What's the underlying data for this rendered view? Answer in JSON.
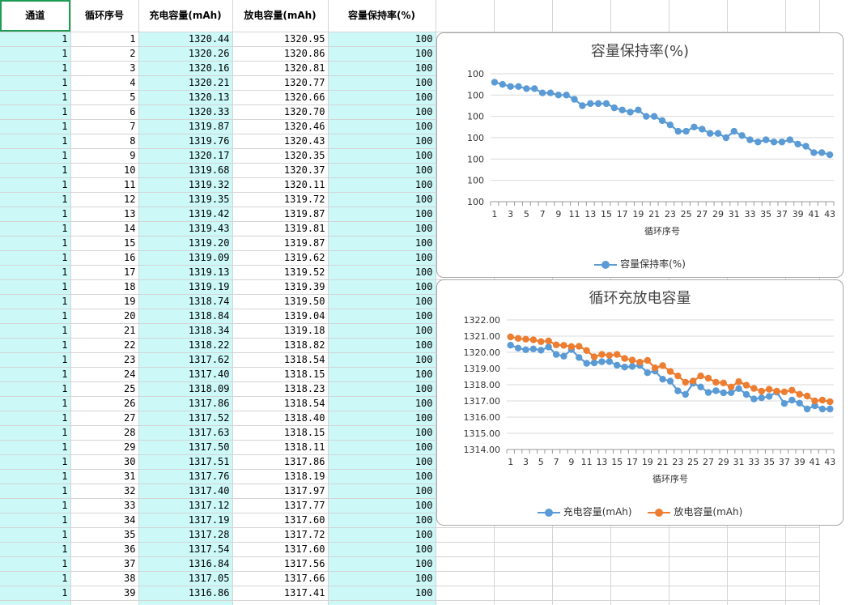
{
  "sheet": {
    "headers": [
      "通道",
      "循环序号",
      "充电容量(mAh)",
      "放电容量(mAh)",
      "容量保持率(%)"
    ],
    "rows": [
      [
        "1",
        "1",
        "1320.44",
        "1320.95",
        "100"
      ],
      [
        "1",
        "2",
        "1320.26",
        "1320.86",
        "100"
      ],
      [
        "1",
        "3",
        "1320.16",
        "1320.81",
        "100"
      ],
      [
        "1",
        "4",
        "1320.21",
        "1320.77",
        "100"
      ],
      [
        "1",
        "5",
        "1320.13",
        "1320.66",
        "100"
      ],
      [
        "1",
        "6",
        "1320.33",
        "1320.70",
        "100"
      ],
      [
        "1",
        "7",
        "1319.87",
        "1320.46",
        "100"
      ],
      [
        "1",
        "8",
        "1319.76",
        "1320.43",
        "100"
      ],
      [
        "1",
        "9",
        "1320.17",
        "1320.35",
        "100"
      ],
      [
        "1",
        "10",
        "1319.68",
        "1320.37",
        "100"
      ],
      [
        "1",
        "11",
        "1319.32",
        "1320.11",
        "100"
      ],
      [
        "1",
        "12",
        "1319.35",
        "1319.72",
        "100"
      ],
      [
        "1",
        "13",
        "1319.42",
        "1319.87",
        "100"
      ],
      [
        "1",
        "14",
        "1319.43",
        "1319.81",
        "100"
      ],
      [
        "1",
        "15",
        "1319.20",
        "1319.87",
        "100"
      ],
      [
        "1",
        "16",
        "1319.09",
        "1319.62",
        "100"
      ],
      [
        "1",
        "17",
        "1319.13",
        "1319.52",
        "100"
      ],
      [
        "1",
        "18",
        "1319.19",
        "1319.39",
        "100"
      ],
      [
        "1",
        "19",
        "1318.74",
        "1319.50",
        "100"
      ],
      [
        "1",
        "20",
        "1318.84",
        "1319.04",
        "100"
      ],
      [
        "1",
        "21",
        "1318.34",
        "1319.18",
        "100"
      ],
      [
        "1",
        "22",
        "1318.22",
        "1318.82",
        "100"
      ],
      [
        "1",
        "23",
        "1317.62",
        "1318.54",
        "100"
      ],
      [
        "1",
        "24",
        "1317.40",
        "1318.15",
        "100"
      ],
      [
        "1",
        "25",
        "1318.09",
        "1318.23",
        "100"
      ],
      [
        "1",
        "26",
        "1317.86",
        "1318.54",
        "100"
      ],
      [
        "1",
        "27",
        "1317.52",
        "1318.40",
        "100"
      ],
      [
        "1",
        "28",
        "1317.63",
        "1318.15",
        "100"
      ],
      [
        "1",
        "29",
        "1317.50",
        "1318.11",
        "100"
      ],
      [
        "1",
        "30",
        "1317.51",
        "1317.86",
        "100"
      ],
      [
        "1",
        "31",
        "1317.76",
        "1318.19",
        "100"
      ],
      [
        "1",
        "32",
        "1317.40",
        "1317.97",
        "100"
      ],
      [
        "1",
        "33",
        "1317.12",
        "1317.77",
        "100"
      ],
      [
        "1",
        "34",
        "1317.19",
        "1317.60",
        "100"
      ],
      [
        "1",
        "35",
        "1317.28",
        "1317.72",
        "100"
      ],
      [
        "1",
        "36",
        "1317.54",
        "1317.60",
        "100"
      ],
      [
        "1",
        "37",
        "1316.84",
        "1317.56",
        "100"
      ],
      [
        "1",
        "38",
        "1317.05",
        "1317.66",
        "100"
      ],
      [
        "1",
        "39",
        "1316.86",
        "1317.41",
        "100"
      ]
    ]
  },
  "chart_data": [
    {
      "type": "line",
      "title": "容量保持率(%)",
      "xlabel": "循环序号",
      "ylabel": "",
      "x_tick_labels": [
        "1",
        "3",
        "5",
        "7",
        "9",
        "11",
        "13",
        "15",
        "17",
        "19",
        "21",
        "23",
        "25",
        "27",
        "29",
        "31",
        "33",
        "35",
        "37",
        "39",
        "41",
        "43"
      ],
      "y_tick_labels": [
        "100",
        "100",
        "100",
        "100",
        "100",
        "100",
        "100"
      ],
      "legend": "bottom",
      "grid": true,
      "series": [
        {
          "name": "容量保持率(%)",
          "color": "#5b9bd5",
          "values": [
            99.96,
            99.95,
            99.94,
            99.94,
            99.93,
            99.93,
            99.91,
            99.91,
            99.9,
            99.9,
            99.88,
            99.85,
            99.86,
            99.86,
            99.86,
            99.84,
            99.83,
            99.82,
            99.83,
            99.8,
            99.8,
            99.78,
            99.76,
            99.73,
            99.73,
            99.75,
            99.74,
            99.72,
            99.72,
            99.7,
            99.73,
            99.71,
            99.69,
            99.68,
            99.69,
            99.68,
            99.68,
            99.69,
            99.67,
            99.66,
            99.63,
            99.63,
            99.62
          ]
        }
      ],
      "ylim": [
        99.4,
        100.0
      ]
    },
    {
      "type": "line",
      "title": "循环充放电容量",
      "xlabel": "循环序号",
      "ylabel": "",
      "x_tick_labels": [
        "1",
        "3",
        "5",
        "7",
        "9",
        "11",
        "13",
        "15",
        "17",
        "19",
        "21",
        "23",
        "25",
        "27",
        "29",
        "31",
        "33",
        "35",
        "37",
        "39",
        "41",
        "43"
      ],
      "y_tick_labels": [
        "1322.00",
        "1321.00",
        "1320.00",
        "1319.00",
        "1318.00",
        "1317.00",
        "1316.00",
        "1315.00",
        "1314.00"
      ],
      "ylim": [
        1314,
        1322
      ],
      "legend": "bottom",
      "grid": true,
      "series": [
        {
          "name": "充电容量(mAh)",
          "color": "#5b9bd5",
          "values": [
            1320.44,
            1320.26,
            1320.16,
            1320.21,
            1320.13,
            1320.33,
            1319.87,
            1319.76,
            1320.17,
            1319.68,
            1319.32,
            1319.35,
            1319.42,
            1319.43,
            1319.2,
            1319.09,
            1319.13,
            1319.19,
            1318.74,
            1318.84,
            1318.34,
            1318.22,
            1317.62,
            1317.4,
            1318.09,
            1317.86,
            1317.52,
            1317.63,
            1317.5,
            1317.51,
            1317.76,
            1317.4,
            1317.12,
            1317.19,
            1317.28,
            1317.54,
            1316.84,
            1317.05,
            1316.86,
            1316.5,
            1316.7,
            1316.5,
            1316.5
          ]
        },
        {
          "name": "放电容量(mAh)",
          "color": "#ed7d31",
          "values": [
            1320.95,
            1320.86,
            1320.81,
            1320.77,
            1320.66,
            1320.7,
            1320.46,
            1320.43,
            1320.35,
            1320.37,
            1320.11,
            1319.72,
            1319.87,
            1319.81,
            1319.87,
            1319.62,
            1319.52,
            1319.39,
            1319.5,
            1319.04,
            1319.18,
            1318.82,
            1318.54,
            1318.15,
            1318.23,
            1318.54,
            1318.4,
            1318.15,
            1318.11,
            1317.86,
            1318.19,
            1317.97,
            1317.77,
            1317.6,
            1317.72,
            1317.6,
            1317.56,
            1317.66,
            1317.41,
            1317.3,
            1317.0,
            1317.05,
            1316.95
          ]
        }
      ]
    }
  ]
}
